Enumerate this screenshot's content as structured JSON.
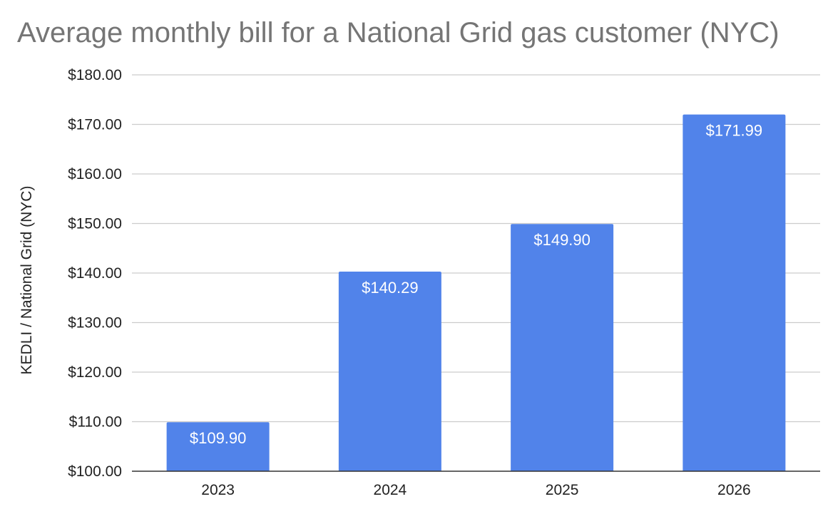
{
  "chart_data": {
    "type": "bar",
    "title": "Average monthly bill for a National Grid gas customer (NYC)",
    "xlabel": "",
    "ylabel": "KEDLI / National Grid (NYC)",
    "categories": [
      "2023",
      "2024",
      "2025",
      "2026"
    ],
    "series": [
      {
        "values": [
          109.9,
          140.29,
          149.9,
          171.99
        ],
        "data_labels": [
          "$109.90",
          "$140.29",
          "$149.90",
          "$171.99"
        ],
        "color": "#5183EA"
      }
    ],
    "ylim": [
      100,
      180
    ],
    "y_ticks": [
      100,
      110,
      120,
      130,
      140,
      150,
      160,
      170,
      180
    ],
    "y_tick_labels": [
      "$100.00",
      "$110.00",
      "$120.00",
      "$130.00",
      "$140.00",
      "$150.00",
      "$160.00",
      "$170.00",
      "$180.00"
    ],
    "grid": true,
    "legend": "none"
  }
}
